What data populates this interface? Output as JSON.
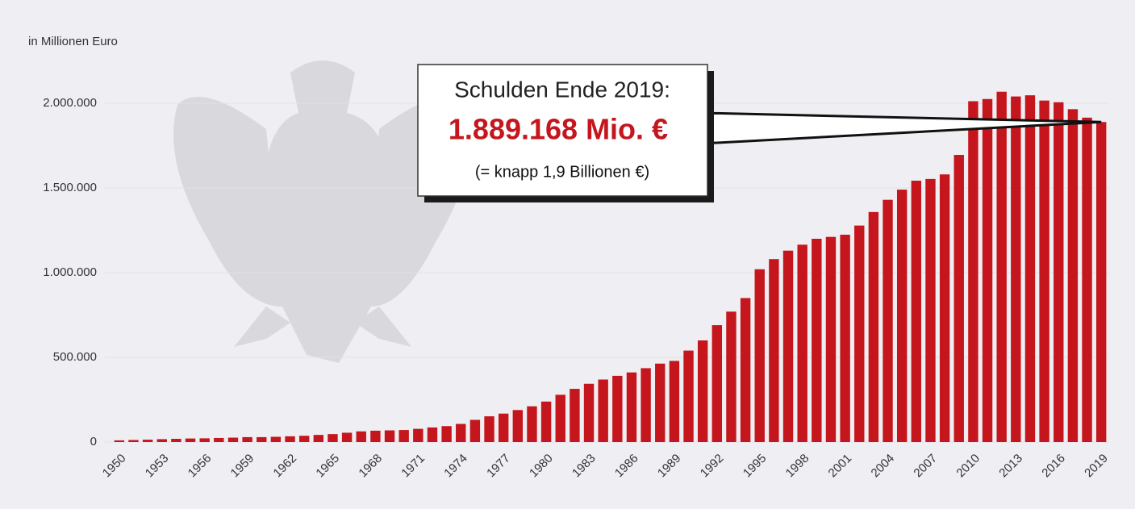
{
  "chart_data": {
    "type": "bar",
    "y_axis_label": "in Millionen Euro",
    "annotation": {
      "title": "Schulden Ende 2019:",
      "highlight": "1.889.168 Mio. €",
      "note": "(= knapp 1,9 Billionen €)"
    },
    "categories": [
      "1950",
      null,
      null,
      "1953",
      null,
      null,
      "1956",
      null,
      null,
      "1959",
      null,
      null,
      "1962",
      null,
      null,
      "1965",
      null,
      null,
      "1968",
      null,
      null,
      "1971",
      null,
      null,
      "1974",
      null,
      null,
      "1977",
      null,
      null,
      "1980",
      null,
      null,
      "1983",
      null,
      null,
      "1986",
      null,
      null,
      "1989",
      null,
      null,
      "1992",
      null,
      null,
      "1995",
      null,
      null,
      "1998",
      null,
      null,
      "2001",
      null,
      null,
      "2004",
      null,
      null,
      "2007",
      null,
      null,
      "2010",
      null,
      null,
      "2013",
      null,
      null,
      "2016",
      null,
      null,
      "2019"
    ],
    "values": [
      10000,
      12000,
      14000,
      17000,
      19000,
      21000,
      22000,
      24000,
      26000,
      29000,
      29000,
      31000,
      34000,
      37000,
      42000,
      47000,
      55000,
      63000,
      67000,
      69000,
      71000,
      78000,
      86000,
      94000,
      107000,
      131000,
      152000,
      168000,
      189000,
      211000,
      239000,
      279000,
      314000,
      344000,
      369000,
      391000,
      411000,
      436000,
      463000,
      479000,
      540000,
      600000,
      690000,
      770000,
      850000,
      1020000,
      1080000,
      1130000,
      1165000,
      1200000,
      1211000,
      1224000,
      1278000,
      1358000,
      1430000,
      1490000,
      1543000,
      1553000,
      1580000,
      1695000,
      2012000,
      2025000,
      2068000,
      2040000,
      2047000,
      2016000,
      2006000,
      1965000,
      1915000,
      1889168
    ],
    "color": "#c5161d",
    "ylim": [
      0,
      2200000
    ],
    "yticks": [
      0,
      {
        "value": 500000,
        "label": "500.000"
      },
      {
        "value": 1000000,
        "label": "1.000.000"
      },
      {
        "value": 1500000,
        "label": "1.500.000"
      },
      {
        "value": 2000000,
        "label": "2.000.000"
      }
    ],
    "grid": true
  }
}
